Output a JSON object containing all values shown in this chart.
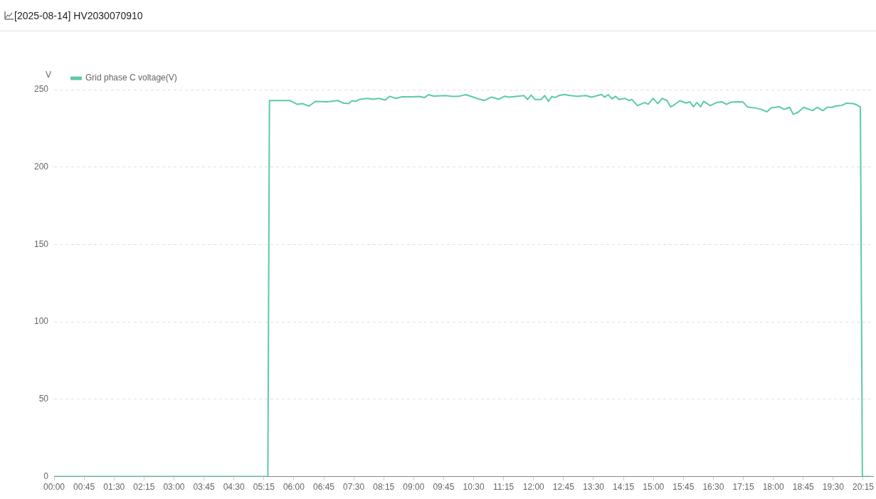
{
  "chart_data": {
    "type": "line",
    "title": "[2025-08-14] HV2030070910",
    "ylabel": "V",
    "legend": "top left",
    "grid": "y",
    "marker": "none",
    "line_style": "solid",
    "xlim": [
      0,
      20.5
    ],
    "ylim": [
      0,
      250
    ],
    "yticks": [
      0,
      50,
      100,
      150,
      200,
      250
    ],
    "xticks": [
      {
        "value": 0,
        "label": "00:00"
      },
      {
        "value": 0.75,
        "label": "00:45"
      },
      {
        "value": 1.5,
        "label": "01:30"
      },
      {
        "value": 2.25,
        "label": "02:15"
      },
      {
        "value": 3,
        "label": "03:00"
      },
      {
        "value": 3.75,
        "label": "03:45"
      },
      {
        "value": 4.5,
        "label": "04:30"
      },
      {
        "value": 5.25,
        "label": "05:15"
      },
      {
        "value": 6,
        "label": "06:00"
      },
      {
        "value": 6.75,
        "label": "06:45"
      },
      {
        "value": 7.5,
        "label": "07:30"
      },
      {
        "value": 8.25,
        "label": "08:15"
      },
      {
        "value": 9,
        "label": "09:00"
      },
      {
        "value": 9.75,
        "label": "09:45"
      },
      {
        "value": 10.5,
        "label": "10:30"
      },
      {
        "value": 11.25,
        "label": "11:15"
      },
      {
        "value": 12,
        "label": "12:00"
      },
      {
        "value": 12.75,
        "label": "12:45"
      },
      {
        "value": 13.5,
        "label": "13:30"
      },
      {
        "value": 14.25,
        "label": "14:15"
      },
      {
        "value": 15,
        "label": "15:00"
      },
      {
        "value": 15.75,
        "label": "15:45"
      },
      {
        "value": 16.5,
        "label": "16:30"
      },
      {
        "value": 17.25,
        "label": "17:15"
      },
      {
        "value": 18,
        "label": "18:00"
      },
      {
        "value": 18.75,
        "label": "18:45"
      },
      {
        "value": 19.5,
        "label": "19:30"
      },
      {
        "value": 20.25,
        "label": "20:15"
      }
    ],
    "series": [
      {
        "name": "Grid phase C voltage(V)",
        "color": "#5bcaa9",
        "x": [
          0,
          5.35,
          5.39,
          5.65,
          5.9,
          6.08,
          6.22,
          6.38,
          6.54,
          6.84,
          7.1,
          7.23,
          7.37,
          7.46,
          7.55,
          7.64,
          7.85,
          7.99,
          8.13,
          8.29,
          8.4,
          8.56,
          8.7,
          8.97,
          9.14,
          9.27,
          9.37,
          9.5,
          9.8,
          9.98,
          10.12,
          10.3,
          10.47,
          10.61,
          10.77,
          10.95,
          11.13,
          11.27,
          11.39,
          11.76,
          11.85,
          11.94,
          12.03,
          12.19,
          12.28,
          12.37,
          12.46,
          12.54,
          12.63,
          12.77,
          12.92,
          13.09,
          13.31,
          13.45,
          13.7,
          13.78,
          13.87,
          13.96,
          14.05,
          14.14,
          14.28,
          14.4,
          14.46,
          14.6,
          14.78,
          14.87,
          14.99,
          15.11,
          15.22,
          15.34,
          15.43,
          15.52,
          15.66,
          15.82,
          15.91,
          16.0,
          16.09,
          16.18,
          16.26,
          16.42,
          16.58,
          16.71,
          16.83,
          16.94,
          17.12,
          17.24,
          17.35,
          17.56,
          17.7,
          17.84,
          17.95,
          18.05,
          18.14,
          18.27,
          18.41,
          18.5,
          18.62,
          18.76,
          18.98,
          19.1,
          19.24,
          19.35,
          19.47,
          19.56,
          19.72,
          19.84,
          20.0,
          20.09,
          20.18,
          20.23,
          20.45
        ],
        "values": [
          0,
          0,
          243,
          243,
          243,
          240.6,
          241,
          239.4,
          242.4,
          242.2,
          243,
          241.4,
          241,
          242.9,
          242.5,
          243.7,
          244.4,
          243.8,
          244.4,
          243.3,
          245.7,
          244.4,
          245.4,
          245.4,
          245.6,
          244.9,
          246.8,
          245.9,
          246.2,
          245.6,
          245.7,
          246.8,
          245.4,
          244.1,
          243,
          245.2,
          243.8,
          245.7,
          245.2,
          246.2,
          243.7,
          246.5,
          243.7,
          243.7,
          246.2,
          242.5,
          245.7,
          244.9,
          246.2,
          246.9,
          246.2,
          245.7,
          246.2,
          245.2,
          246.9,
          245.2,
          246.8,
          244.1,
          245.7,
          243.7,
          244.4,
          242.9,
          243.7,
          239.7,
          241.7,
          240.6,
          244.4,
          241,
          244.4,
          243,
          238.9,
          240.2,
          242.9,
          241.4,
          242.2,
          239,
          241.7,
          239,
          242.5,
          239.7,
          241.7,
          242.2,
          240.5,
          241.9,
          242.2,
          242.1,
          238.9,
          238.1,
          237.3,
          235.7,
          238.3,
          238.6,
          239.1,
          237.3,
          238.6,
          234.1,
          235.4,
          238.6,
          236.5,
          238.6,
          236.5,
          238.6,
          238.6,
          239.4,
          239.9,
          241.3,
          241,
          240.2,
          238.9,
          0,
          0
        ]
      }
    ]
  }
}
